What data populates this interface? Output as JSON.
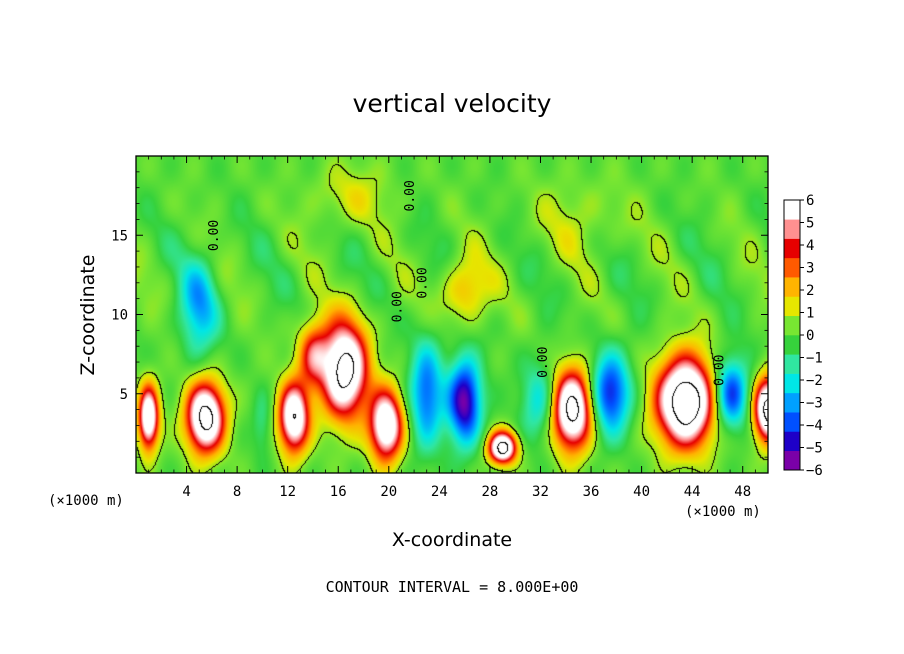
{
  "chart_data": {
    "type": "heatmap",
    "title": "vertical velocity",
    "xlabel": "X-coordinate",
    "ylabel": "Z-coordinate",
    "x_unit_label": "(×1000 m)",
    "x_unit_label_right": "(×1000 m)",
    "xlim": [
      0,
      50
    ],
    "ylim": [
      0,
      20
    ],
    "xticks": [
      4,
      8,
      12,
      16,
      20,
      24,
      28,
      32,
      36,
      40,
      44,
      48
    ],
    "yticks": [
      5,
      10,
      15
    ],
    "colorbar": {
      "vmin": -6,
      "vmax": 6,
      "ticks": [
        6,
        5,
        4,
        3,
        2,
        1,
        0,
        -1,
        -2,
        -3,
        -4,
        -5,
        -6
      ],
      "tick_labels": [
        "6",
        "5",
        "4",
        "3",
        "2",
        "1",
        "0",
        "−1",
        "−2",
        "−3",
        "−4",
        "−5",
        "−6"
      ],
      "colors": [
        "#7a00a8",
        "#1e00c8",
        "#0050ff",
        "#00a0ff",
        "#00e6e6",
        "#30e6a0",
        "#36d23c",
        "#78e632",
        "#e6e600",
        "#ffb400",
        "#ff5a00",
        "#e60000",
        "#ff9090",
        "#ffffff"
      ]
    },
    "contour_labels": [
      "0.00",
      "0.00",
      "0.00",
      "0.00",
      "0.00",
      "0.00"
    ],
    "features": [
      {
        "x": 1.0,
        "z": 3.5,
        "sx": 0.8,
        "sz": 2.0,
        "v": 8
      },
      {
        "x": 5.5,
        "z": 3.5,
        "sx": 1.5,
        "sz": 2.2,
        "v": 9
      },
      {
        "x": 5.0,
        "z": 10.5,
        "sx": 1.5,
        "sz": 3.0,
        "v": -3
      },
      {
        "x": 12.5,
        "z": 3.5,
        "sx": 1.2,
        "sz": 2.2,
        "v": 8
      },
      {
        "x": 16.5,
        "z": 6.5,
        "sx": 1.8,
        "sz": 3.0,
        "v": 9
      },
      {
        "x": 19.8,
        "z": 3.0,
        "sx": 1.3,
        "sz": 2.2,
        "v": 8
      },
      {
        "x": 14.0,
        "z": 7.5,
        "sx": 1.2,
        "sz": 2.0,
        "v": 4
      },
      {
        "x": 10.0,
        "z": 3.0,
        "sx": 0.8,
        "sz": 2.0,
        "v": -1.2
      },
      {
        "x": 23.0,
        "z": 5.0,
        "sx": 1.3,
        "sz": 3.2,
        "v": -4
      },
      {
        "x": 26.0,
        "z": 4.5,
        "sx": 1.3,
        "sz": 2.6,
        "v": -6
      },
      {
        "x": 29.0,
        "z": 1.6,
        "sx": 1.1,
        "sz": 1.0,
        "v": 9
      },
      {
        "x": 32.0,
        "z": 4.5,
        "sx": 1.5,
        "sz": 2.5,
        "v": -2.5
      },
      {
        "x": 34.5,
        "z": 4.0,
        "sx": 1.6,
        "sz": 2.5,
        "v": 9
      },
      {
        "x": 37.5,
        "z": 5.0,
        "sx": 1.6,
        "sz": 2.5,
        "v": -5
      },
      {
        "x": 43.5,
        "z": 4.5,
        "sx": 2.3,
        "sz": 2.8,
        "v": 10
      },
      {
        "x": 47.0,
        "z": 5.0,
        "sx": 1.4,
        "sz": 2.2,
        "v": -5
      },
      {
        "x": 50.0,
        "z": 4.0,
        "sx": 1.1,
        "sz": 2.0,
        "v": 9
      },
      {
        "x": 26.0,
        "z": 11.5,
        "sx": 1.8,
        "sz": 2.0,
        "v": 2.5
      },
      {
        "x": 17.0,
        "z": 17.5,
        "sx": 3.0,
        "sz": 2.0,
        "v": 1.3
      },
      {
        "x": 35.0,
        "z": 16.0,
        "sx": 4.0,
        "sz": 2.5,
        "v": 0.9
      }
    ],
    "zero_contour_level": 0.8,
    "inner_contour_level": 8.0
  },
  "footer": {
    "contour_interval": "CONTOUR INTERVAL = 8.000E+00"
  }
}
